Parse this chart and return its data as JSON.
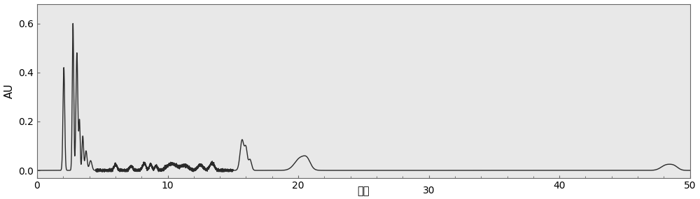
{
  "xlim": [
    0,
    50
  ],
  "ylim": [
    -0.03,
    0.68
  ],
  "yticks": [
    0.0,
    0.2,
    0.4,
    0.6
  ],
  "xlabel": "分钟",
  "ylabel": "AU",
  "line_color": "#2a2a2a",
  "line_width": 1.0,
  "plot_bg_color": "#e8e8e8",
  "fig_bg_color": "#ffffff",
  "spine_color": "#666666",
  "peaks": [
    {
      "mu": 2.05,
      "sigma": 0.065,
      "amp": 0.42
    },
    {
      "mu": 2.75,
      "sigma": 0.055,
      "amp": 0.6
    },
    {
      "mu": 3.05,
      "sigma": 0.07,
      "amp": 0.48
    },
    {
      "mu": 3.25,
      "sigma": 0.05,
      "amp": 0.2
    },
    {
      "mu": 3.5,
      "sigma": 0.06,
      "amp": 0.14
    },
    {
      "mu": 3.75,
      "sigma": 0.08,
      "amp": 0.08
    },
    {
      "mu": 4.1,
      "sigma": 0.1,
      "amp": 0.04
    },
    {
      "mu": 6.0,
      "sigma": 0.12,
      "amp": 0.025
    },
    {
      "mu": 7.2,
      "sigma": 0.12,
      "amp": 0.018
    },
    {
      "mu": 8.2,
      "sigma": 0.13,
      "amp": 0.03
    },
    {
      "mu": 8.7,
      "sigma": 0.1,
      "amp": 0.025
    },
    {
      "mu": 9.1,
      "sigma": 0.09,
      "amp": 0.02
    },
    {
      "mu": 10.3,
      "sigma": 0.35,
      "amp": 0.028
    },
    {
      "mu": 11.3,
      "sigma": 0.3,
      "amp": 0.02
    },
    {
      "mu": 12.5,
      "sigma": 0.2,
      "amp": 0.022
    },
    {
      "mu": 13.4,
      "sigma": 0.18,
      "amp": 0.03
    },
    {
      "mu": 15.7,
      "sigma": 0.15,
      "amp": 0.125
    },
    {
      "mu": 16.0,
      "sigma": 0.1,
      "amp": 0.08
    },
    {
      "mu": 16.3,
      "sigma": 0.12,
      "amp": 0.045
    },
    {
      "mu": 20.2,
      "sigma": 0.45,
      "amp": 0.052
    },
    {
      "mu": 20.7,
      "sigma": 0.25,
      "amp": 0.025
    },
    {
      "mu": 48.2,
      "sigma": 0.4,
      "amp": 0.022
    },
    {
      "mu": 48.8,
      "sigma": 0.3,
      "amp": 0.014
    }
  ]
}
